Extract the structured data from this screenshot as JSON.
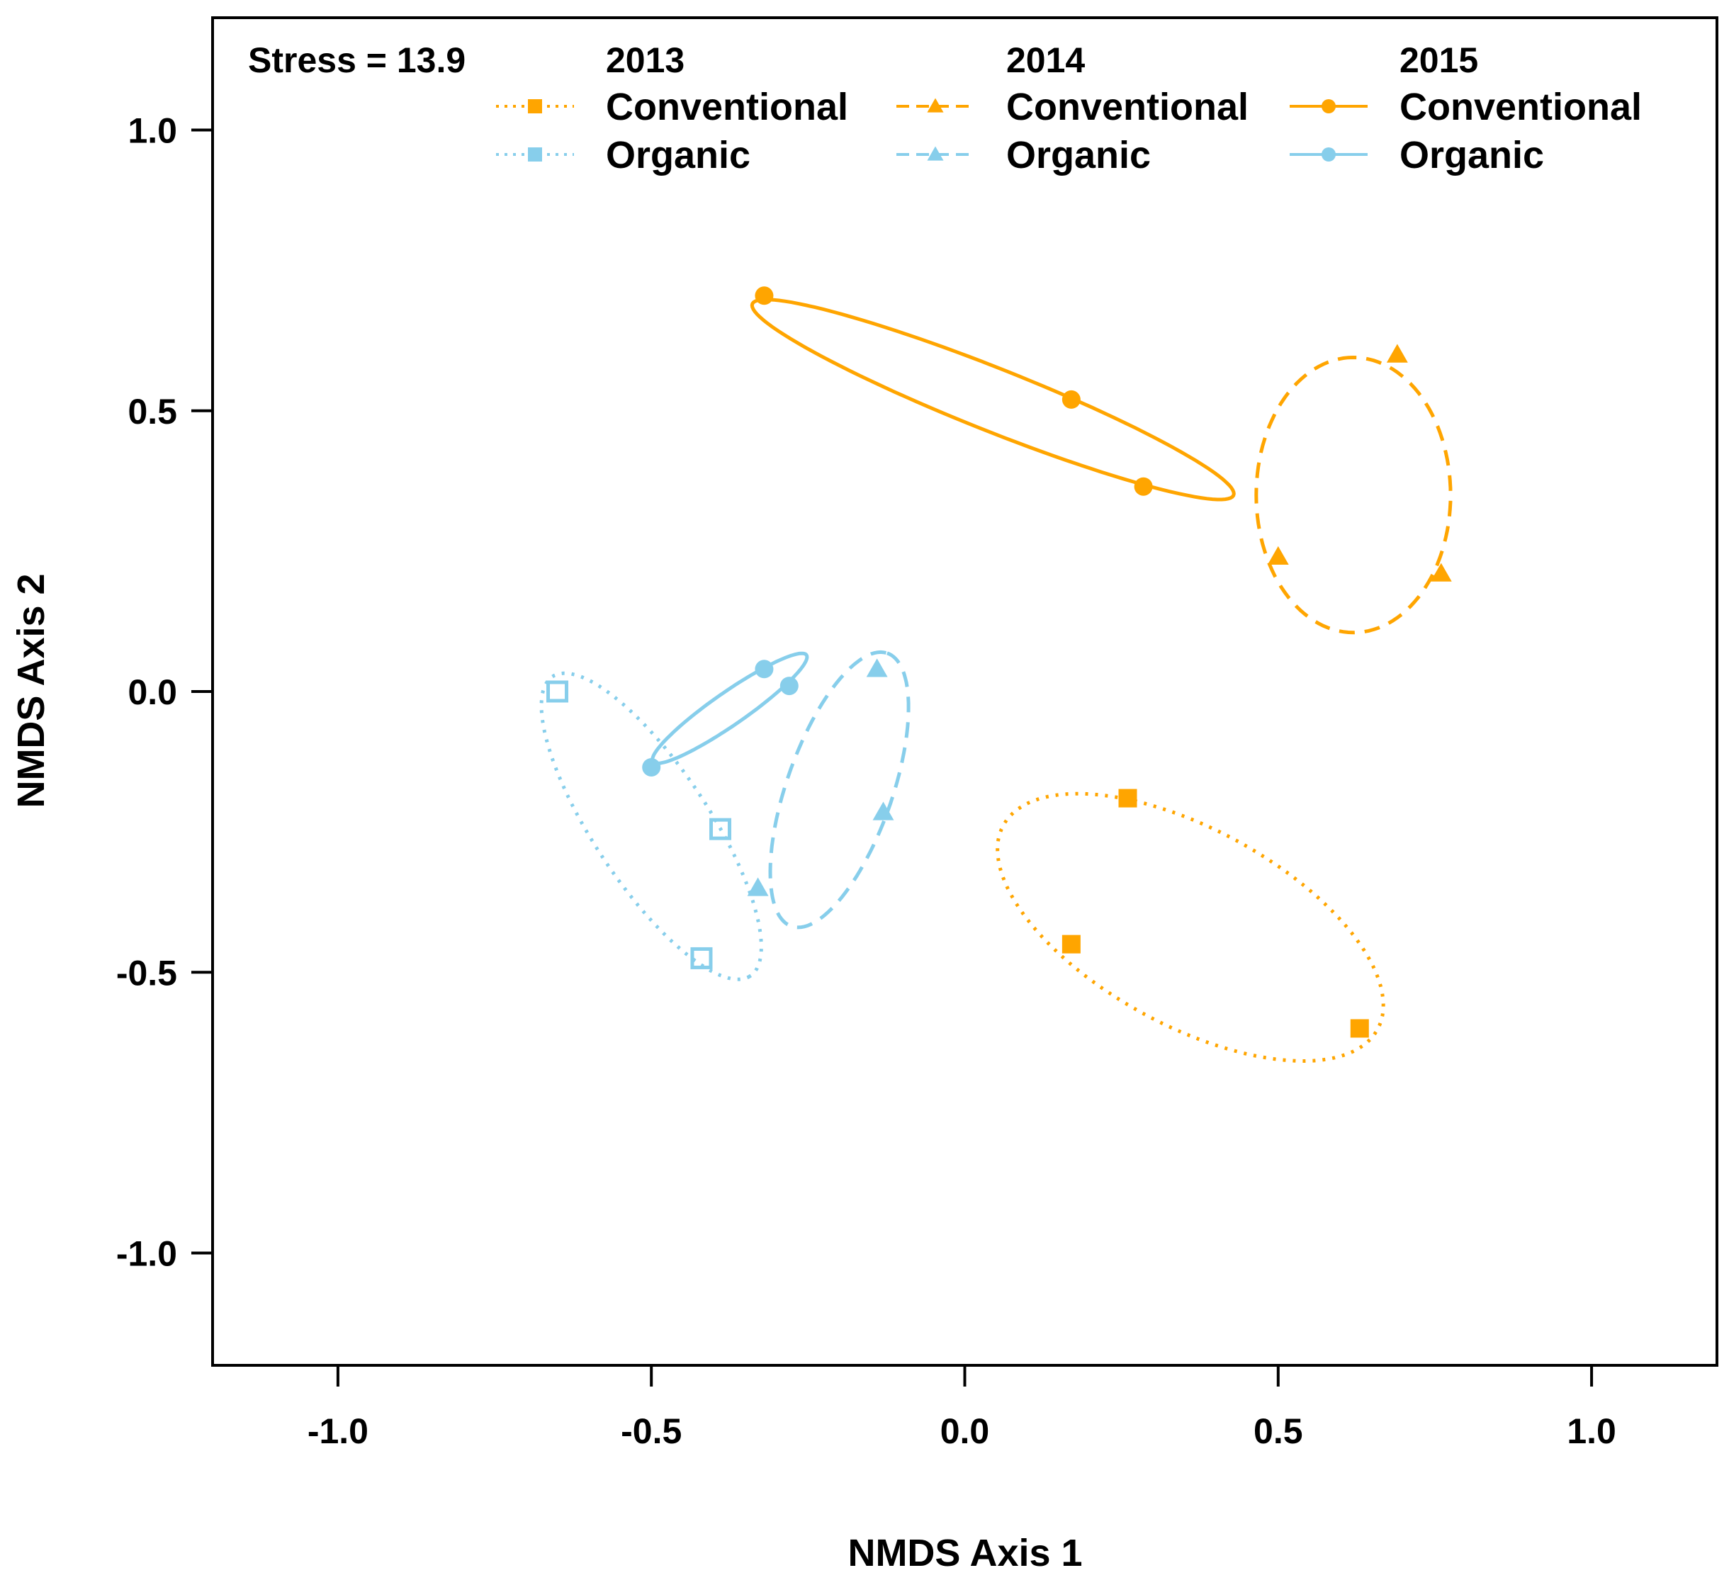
{
  "chart_data": {
    "type": "scatter",
    "title": "",
    "xlabel": "NMDS Axis 1",
    "ylabel": "NMDS Axis 2",
    "xlim": [
      -1.2,
      1.2
    ],
    "ylim": [
      -1.2,
      1.2
    ],
    "xticks": [
      -1.0,
      -0.5,
      0.0,
      0.5,
      1.0
    ],
    "xtick_labels": [
      "-1.0",
      "-0.5",
      "0.0",
      "0.5",
      "1.0"
    ],
    "yticks": [
      -1.0,
      -0.5,
      0.0,
      0.5,
      1.0
    ],
    "ytick_labels": [
      "-1.0",
      "-0.5",
      "0.0",
      "0.5",
      "1.0"
    ],
    "grid": false,
    "annotation": "Stress = 13.9",
    "legend": {
      "placement": "top",
      "groups": [
        {
          "year": "2013",
          "entries": [
            "Conventional",
            "Organic"
          ]
        },
        {
          "year": "2014",
          "entries": [
            "Conventional",
            "Organic"
          ]
        },
        {
          "year": "2015",
          "entries": [
            "Conventional",
            "Organic"
          ]
        }
      ]
    },
    "colors": {
      "Conventional": "#FFA500",
      "Organic": "#87CEEB"
    },
    "series": [
      {
        "name": "2013 Conventional",
        "year": "2013",
        "treatment": "Conventional",
        "marker": "square-filled",
        "line": "dotted",
        "points": [
          [
            0.26,
            -0.19
          ],
          [
            0.17,
            -0.45
          ],
          [
            0.63,
            -0.6
          ]
        ],
        "ellipse": {
          "center": [
            0.36,
            -0.42
          ],
          "semi_major": 0.35,
          "semi_minor": 0.17,
          "angle_deg": -33
        }
      },
      {
        "name": "2013 Organic",
        "year": "2013",
        "treatment": "Organic",
        "marker": "square-open",
        "line": "dotted",
        "points": [
          [
            -0.65,
            0.0
          ],
          [
            -0.39,
            -0.245
          ],
          [
            -0.42,
            -0.475
          ]
        ],
        "ellipse": {
          "center": [
            -0.5,
            -0.24
          ],
          "semi_major": 0.31,
          "semi_minor": 0.095,
          "angle_deg": -60
        }
      },
      {
        "name": "2014 Conventional",
        "year": "2014",
        "treatment": "Conventional",
        "marker": "triangle-filled",
        "line": "dashed",
        "points": [
          [
            0.69,
            0.6
          ],
          [
            0.5,
            0.24
          ],
          [
            0.76,
            0.21
          ]
        ],
        "ellipse": {
          "center": [
            0.62,
            0.35
          ],
          "semi_major": 0.245,
          "semi_minor": 0.155,
          "angle_deg": 90
        }
      },
      {
        "name": "2014 Organic",
        "year": "2014",
        "treatment": "Organic",
        "marker": "triangle-filled",
        "line": "dashed",
        "points": [
          [
            -0.14,
            0.04
          ],
          [
            -0.13,
            -0.215
          ],
          [
            -0.33,
            -0.35
          ]
        ],
        "ellipse": {
          "center": [
            -0.2,
            -0.175
          ],
          "semi_major": 0.255,
          "semi_minor": 0.085,
          "angle_deg": 73
        }
      },
      {
        "name": "2015 Conventional",
        "year": "2015",
        "treatment": "Conventional",
        "marker": "circle-filled",
        "line": "solid",
        "points": [
          [
            -0.32,
            0.705
          ],
          [
            0.17,
            0.52
          ],
          [
            0.285,
            0.365
          ]
        ],
        "ellipse": {
          "center": [
            0.045,
            0.52
          ],
          "semi_major": 0.42,
          "semi_minor": 0.055,
          "angle_deg": -24
        }
      },
      {
        "name": "2015 Organic",
        "year": "2015",
        "treatment": "Organic",
        "marker": "circle-filled",
        "line": "solid",
        "points": [
          [
            -0.32,
            0.04
          ],
          [
            -0.28,
            0.01
          ],
          [
            -0.5,
            -0.135
          ]
        ],
        "ellipse": {
          "center": [
            -0.375,
            -0.03
          ],
          "semi_major": 0.155,
          "semi_minor": 0.028,
          "angle_deg": 38
        }
      }
    ]
  }
}
